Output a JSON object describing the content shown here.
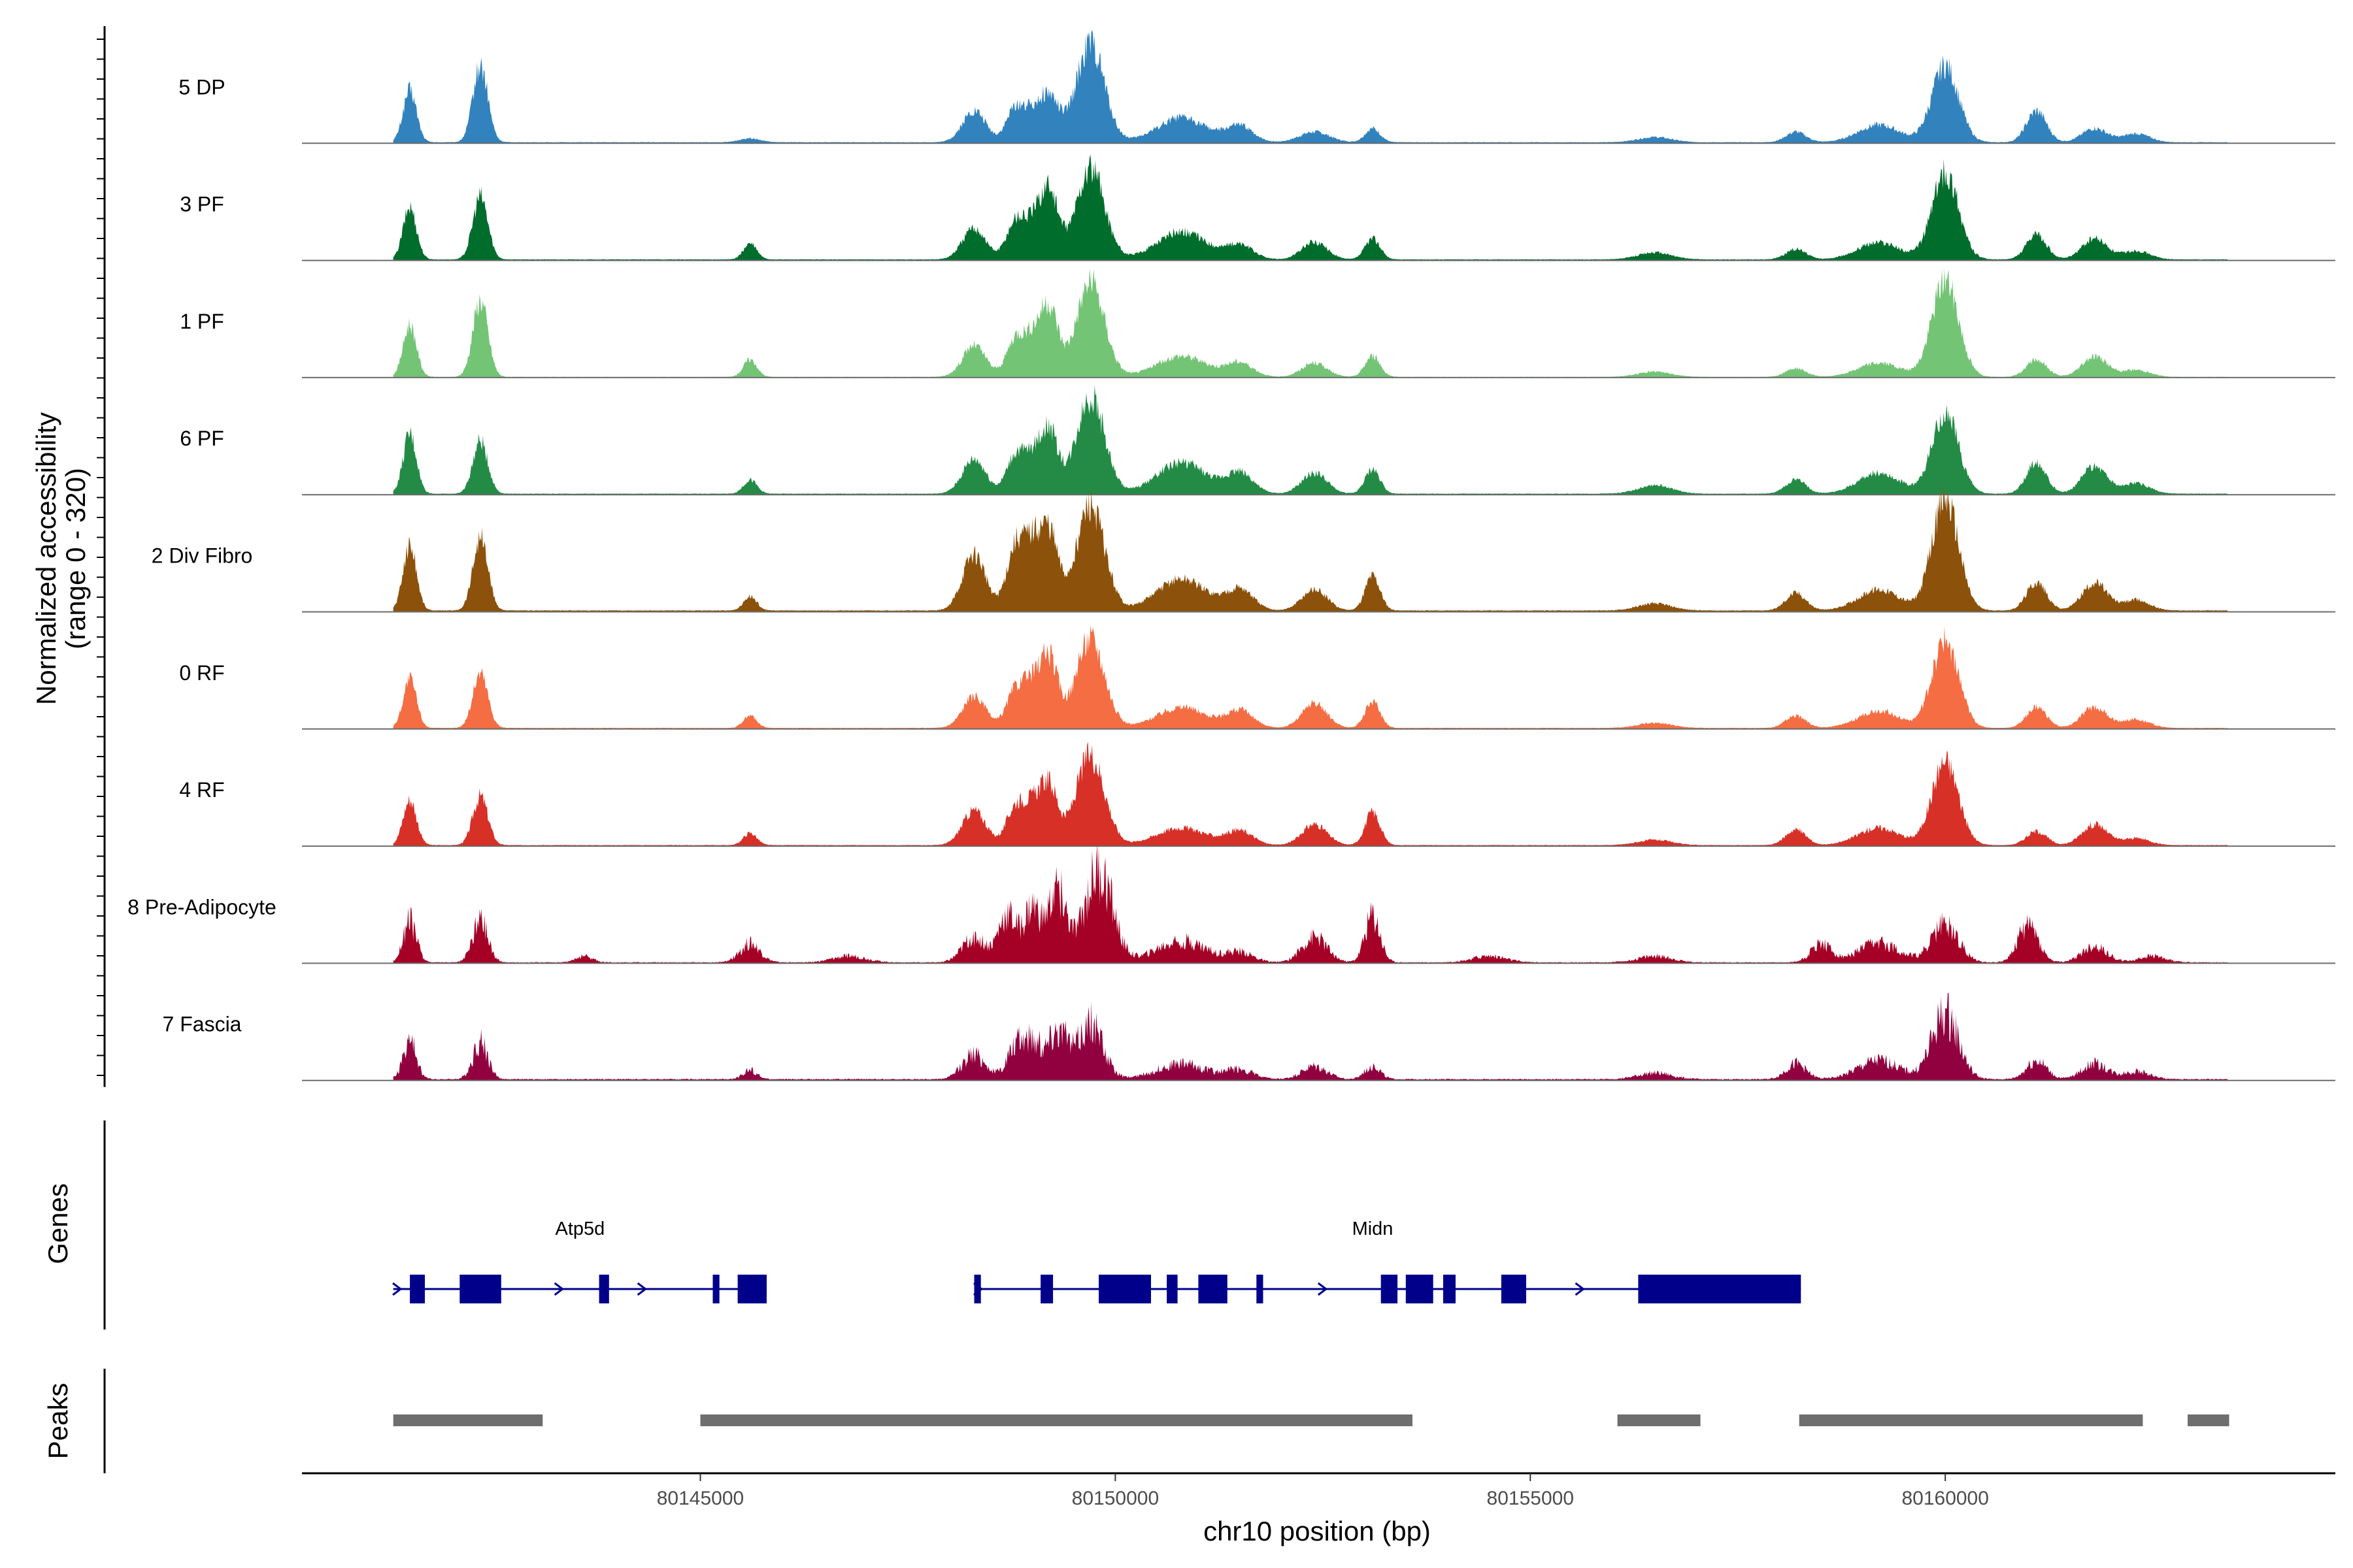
{
  "chart_data": {
    "type": "area",
    "title": "",
    "ylabel": "Normalized accessibility",
    "ylabel_range": "(range 0 - 320)",
    "xlabel": "chr10 position (bp)",
    "y_range": [
      0,
      320
    ],
    "x_range": [
      80140200,
      80164700
    ],
    "x_ticks": [
      {
        "value": 80145000,
        "label": "80145000"
      },
      {
        "value": 80150000,
        "label": "80150000"
      },
      {
        "value": 80155000,
        "label": "80155000"
      },
      {
        "value": 80160000,
        "label": "80160000"
      }
    ],
    "signal_span": [
      80141300,
      80163400
    ],
    "series": [
      {
        "name": "5 DP",
        "color": "#3182BD",
        "fill_level": 3,
        "peaks": [
          [
            80141500,
            150,
            80
          ],
          [
            80142350,
            220,
            90
          ],
          [
            80145600,
            12,
            120
          ],
          [
            80148300,
            90,
            140
          ],
          [
            80148800,
            100,
            110
          ],
          [
            80149000,
            60,
            100
          ],
          [
            80149700,
            280,
            170
          ],
          [
            80149200,
            130,
            120
          ],
          [
            80150800,
            70,
            300
          ],
          [
            80151500,
            45,
            160
          ],
          [
            80152400,
            30,
            180
          ],
          [
            80153100,
            40,
            90
          ],
          [
            80156500,
            15,
            200
          ],
          [
            80158200,
            30,
            120
          ],
          [
            80159200,
            50,
            250
          ],
          [
            80160000,
            220,
            160
          ],
          [
            80161100,
            90,
            120
          ],
          [
            80161800,
            40,
            150
          ],
          [
            80162300,
            25,
            160
          ]
        ]
      },
      {
        "name": "3 PF",
        "color": "#006D2C",
        "fill_level": 3,
        "peaks": [
          [
            80141500,
            150,
            80
          ],
          [
            80142350,
            180,
            90
          ],
          [
            80145600,
            45,
            80
          ],
          [
            80148300,
            90,
            140
          ],
          [
            80148800,
            110,
            110
          ],
          [
            80149000,
            80,
            100
          ],
          [
            80149700,
            260,
            170
          ],
          [
            80149200,
            200,
            110
          ],
          [
            80150800,
            80,
            300
          ],
          [
            80151500,
            40,
            160
          ],
          [
            80152400,
            50,
            150
          ],
          [
            80153100,
            60,
            90
          ],
          [
            80156500,
            20,
            200
          ],
          [
            80158200,
            30,
            120
          ],
          [
            80159200,
            50,
            250
          ],
          [
            80160000,
            250,
            160
          ],
          [
            80161100,
            70,
            120
          ],
          [
            80161800,
            60,
            150
          ],
          [
            80162300,
            25,
            160
          ]
        ]
      },
      {
        "name": "1 PF",
        "color": "#74C476",
        "fill_level": 2,
        "peaks": [
          [
            80141500,
            150,
            80
          ],
          [
            80142350,
            220,
            90
          ],
          [
            80145600,
            50,
            80
          ],
          [
            80148300,
            90,
            140
          ],
          [
            80148800,
            110,
            110
          ],
          [
            80149000,
            90,
            100
          ],
          [
            80149700,
            270,
            170
          ],
          [
            80149200,
            200,
            110
          ],
          [
            80150800,
            60,
            300
          ],
          [
            80151500,
            40,
            160
          ],
          [
            80152400,
            40,
            150
          ],
          [
            80153100,
            60,
            90
          ],
          [
            80156500,
            15,
            200
          ],
          [
            80158200,
            25,
            120
          ],
          [
            80159200,
            40,
            250
          ],
          [
            80160000,
            280,
            160
          ],
          [
            80161100,
            50,
            120
          ],
          [
            80161800,
            60,
            150
          ],
          [
            80162300,
            20,
            160
          ]
        ]
      },
      {
        "name": "6 PF",
        "color": "#238B45",
        "fill_level": 3,
        "peaks": [
          [
            80141500,
            170,
            80
          ],
          [
            80142350,
            150,
            90
          ],
          [
            80145600,
            40,
            80
          ],
          [
            80148300,
            100,
            140
          ],
          [
            80148800,
            110,
            110
          ],
          [
            80149000,
            80,
            100
          ],
          [
            80149700,
            280,
            170
          ],
          [
            80149200,
            180,
            110
          ],
          [
            80150800,
            90,
            300
          ],
          [
            80151500,
            60,
            160
          ],
          [
            80152400,
            60,
            150
          ],
          [
            80153100,
            70,
            90
          ],
          [
            80156500,
            25,
            200
          ],
          [
            80158200,
            40,
            120
          ],
          [
            80159200,
            60,
            250
          ],
          [
            80160000,
            230,
            160
          ],
          [
            80161100,
            90,
            120
          ],
          [
            80161800,
            80,
            150
          ],
          [
            80162300,
            30,
            160
          ]
        ]
      },
      {
        "name": "2 Div Fibro",
        "color": "#8C510A",
        "fill_level": 4,
        "peaks": [
          [
            80141500,
            190,
            80
          ],
          [
            80142350,
            210,
            90
          ],
          [
            80145600,
            40,
            80
          ],
          [
            80148300,
            160,
            140
          ],
          [
            80148800,
            180,
            110
          ],
          [
            80149000,
            150,
            100
          ],
          [
            80149700,
            300,
            170
          ],
          [
            80149200,
            220,
            110
          ],
          [
            80150800,
            90,
            300
          ],
          [
            80151500,
            60,
            160
          ],
          [
            80152400,
            60,
            150
          ],
          [
            80153100,
            100,
            90
          ],
          [
            80156500,
            20,
            200
          ],
          [
            80158200,
            50,
            120
          ],
          [
            80159200,
            60,
            250
          ],
          [
            80160000,
            320,
            160
          ],
          [
            80161100,
            80,
            120
          ],
          [
            80161800,
            80,
            150
          ],
          [
            80162300,
            30,
            160
          ]
        ]
      },
      {
        "name": "0 RF",
        "color": "#F46D43",
        "fill_level": 3,
        "peaks": [
          [
            80141500,
            140,
            80
          ],
          [
            80142350,
            160,
            90
          ],
          [
            80145600,
            35,
            80
          ],
          [
            80148300,
            90,
            140
          ],
          [
            80148800,
            110,
            110
          ],
          [
            80149000,
            100,
            100
          ],
          [
            80149700,
            260,
            170
          ],
          [
            80149200,
            200,
            110
          ],
          [
            80150800,
            60,
            300
          ],
          [
            80151500,
            50,
            160
          ],
          [
            80152400,
            70,
            150
          ],
          [
            80153100,
            75,
            90
          ],
          [
            80156500,
            15,
            200
          ],
          [
            80158200,
            35,
            120
          ],
          [
            80159200,
            50,
            250
          ],
          [
            80160000,
            250,
            160
          ],
          [
            80161100,
            60,
            120
          ],
          [
            80161800,
            60,
            150
          ],
          [
            80162300,
            25,
            160
          ]
        ]
      },
      {
        "name": "4 RF",
        "color": "#D73027",
        "fill_level": 3,
        "peaks": [
          [
            80141500,
            130,
            80
          ],
          [
            80142350,
            140,
            90
          ],
          [
            80145600,
            35,
            80
          ],
          [
            80148300,
            100,
            140
          ],
          [
            80148800,
            110,
            110
          ],
          [
            80149000,
            90,
            100
          ],
          [
            80149700,
            260,
            170
          ],
          [
            80149200,
            170,
            110
          ],
          [
            80150800,
            50,
            300
          ],
          [
            80151500,
            40,
            160
          ],
          [
            80152400,
            60,
            150
          ],
          [
            80153100,
            95,
            90
          ],
          [
            80156500,
            15,
            200
          ],
          [
            80158200,
            45,
            120
          ],
          [
            80159200,
            50,
            250
          ],
          [
            80160000,
            240,
            160
          ],
          [
            80161100,
            40,
            120
          ],
          [
            80161800,
            60,
            150
          ],
          [
            80162300,
            20,
            160
          ]
        ]
      },
      {
        "name": "8 Pre-Adipocyte",
        "color": "#A50026",
        "fill_level": 3,
        "noisy": true,
        "peaks": [
          [
            80141500,
            130,
            80
          ],
          [
            80142350,
            140,
            90
          ],
          [
            80143600,
            20,
            100
          ],
          [
            80145600,
            60,
            120
          ],
          [
            80146800,
            20,
            200
          ],
          [
            80148300,
            80,
            140
          ],
          [
            80148700,
            150,
            110
          ],
          [
            80149000,
            170,
            100
          ],
          [
            80149800,
            290,
            170
          ],
          [
            80149300,
            230,
            110
          ],
          [
            80150800,
            70,
            300
          ],
          [
            80151500,
            30,
            160
          ],
          [
            80152400,
            80,
            150
          ],
          [
            80153100,
            150,
            90
          ],
          [
            80154500,
            20,
            200
          ],
          [
            80156500,
            20,
            200
          ],
          [
            80158500,
            60,
            120
          ],
          [
            80159200,
            60,
            250
          ],
          [
            80160000,
            120,
            160
          ],
          [
            80161000,
            120,
            120
          ],
          [
            80161800,
            50,
            150
          ],
          [
            80162500,
            20,
            160
          ]
        ]
      },
      {
        "name": "7 Fascia",
        "color": "#91003F",
        "fill_level": 4,
        "noisy": true,
        "peaks": [
          [
            80141500,
            120,
            80
          ],
          [
            80142350,
            120,
            90
          ],
          [
            80145600,
            30,
            80
          ],
          [
            80148300,
            80,
            140
          ],
          [
            80148800,
            100,
            110
          ],
          [
            80149000,
            110,
            100
          ],
          [
            80149700,
            180,
            150
          ],
          [
            80149300,
            160,
            120
          ],
          [
            80150800,
            50,
            300
          ],
          [
            80151500,
            30,
            160
          ],
          [
            80152400,
            40,
            150
          ],
          [
            80153100,
            45,
            90
          ],
          [
            80156500,
            20,
            200
          ],
          [
            80158200,
            50,
            120
          ],
          [
            80159200,
            60,
            250
          ],
          [
            80160000,
            210,
            160
          ],
          [
            80161100,
            60,
            120
          ],
          [
            80161800,
            50,
            150
          ],
          [
            80162300,
            25,
            160
          ]
        ]
      }
    ],
    "genes_track_label": "Genes",
    "peaks_track_label": "Peaks",
    "genes": [
      {
        "name": "Atp5d",
        "strand": "+",
        "start": 80141300,
        "end": 80145800,
        "label_pos": 80143550,
        "exons": [
          [
            80141500,
            80141680
          ],
          [
            80142100,
            80142600
          ],
          [
            80143780,
            80143900
          ],
          [
            80145150,
            80145230
          ],
          [
            80145450,
            80145800
          ]
        ],
        "arrows": [
          80141350,
          80143300,
          80144300
        ]
      },
      {
        "name": "Midn",
        "strand": "+",
        "start": 80148300,
        "end": 80158260,
        "label_pos": 80153100,
        "exons": [
          [
            80148300,
            80148380
          ],
          [
            80149100,
            80149250
          ],
          [
            80149800,
            80150430
          ],
          [
            80150620,
            80150750
          ],
          [
            80151000,
            80151350
          ],
          [
            80151700,
            80151780
          ],
          [
            80153200,
            80153400
          ],
          [
            80153500,
            80153830
          ],
          [
            80153950,
            80154100
          ],
          [
            80154650,
            80154950
          ],
          [
            80156300,
            80158260
          ]
        ],
        "arrows": [
          80148350,
          80152500,
          80155600
        ]
      }
    ],
    "peak_regions": [
      [
        80141300,
        80143100
      ],
      [
        80145000,
        80153580
      ],
      [
        80156050,
        80157050
      ],
      [
        80158240,
        80162380
      ],
      [
        80162920,
        80163420
      ]
    ]
  }
}
